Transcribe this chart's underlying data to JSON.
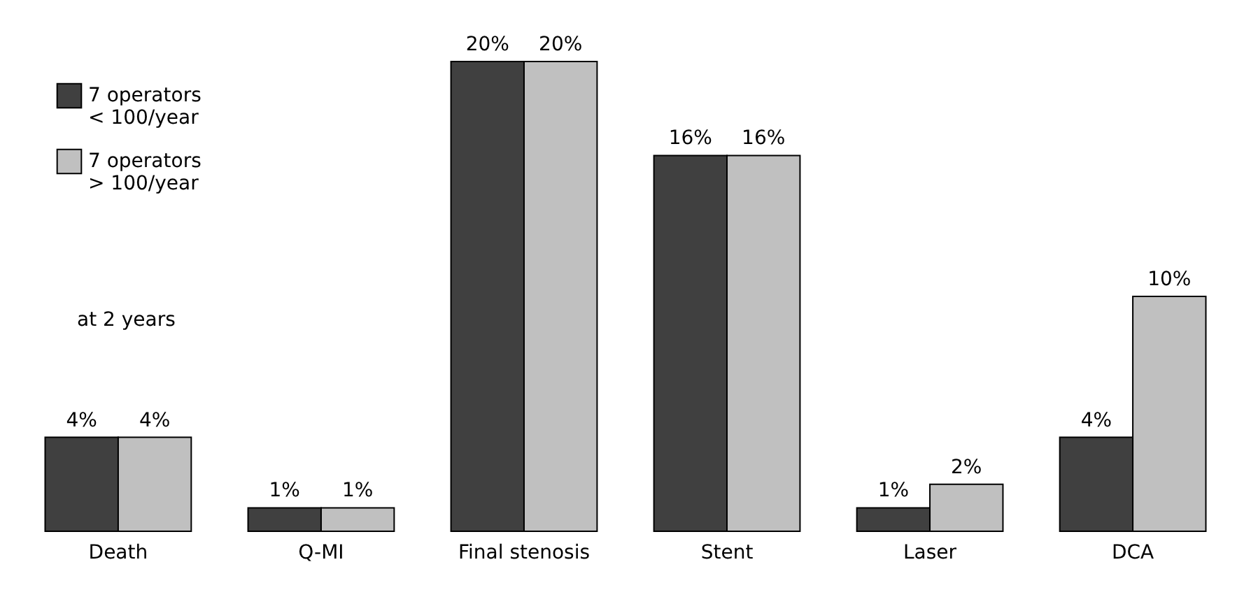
{
  "chart_data": {
    "type": "bar",
    "categories": [
      "Death",
      "Q-MI",
      "Final stenosis",
      "Stent",
      "Laser",
      "DCA"
    ],
    "series": [
      {
        "name": "7 operators\n< 100/year",
        "color": "#404040",
        "values": [
          4,
          1,
          20,
          16,
          1,
          4
        ],
        "value_labels": [
          "4%",
          "1%",
          "20%",
          "16%",
          "1%",
          "4%"
        ]
      },
      {
        "name": "7 operators\n> 100/year",
        "color": "#c0c0c0",
        "values": [
          4,
          1,
          20,
          16,
          2,
          10
        ],
        "value_labels": [
          "4%",
          "1%",
          "20%",
          "16%",
          "2%",
          "10%"
        ]
      }
    ],
    "legend": "top left",
    "annotations": [
      "at 2 years"
    ]
  }
}
